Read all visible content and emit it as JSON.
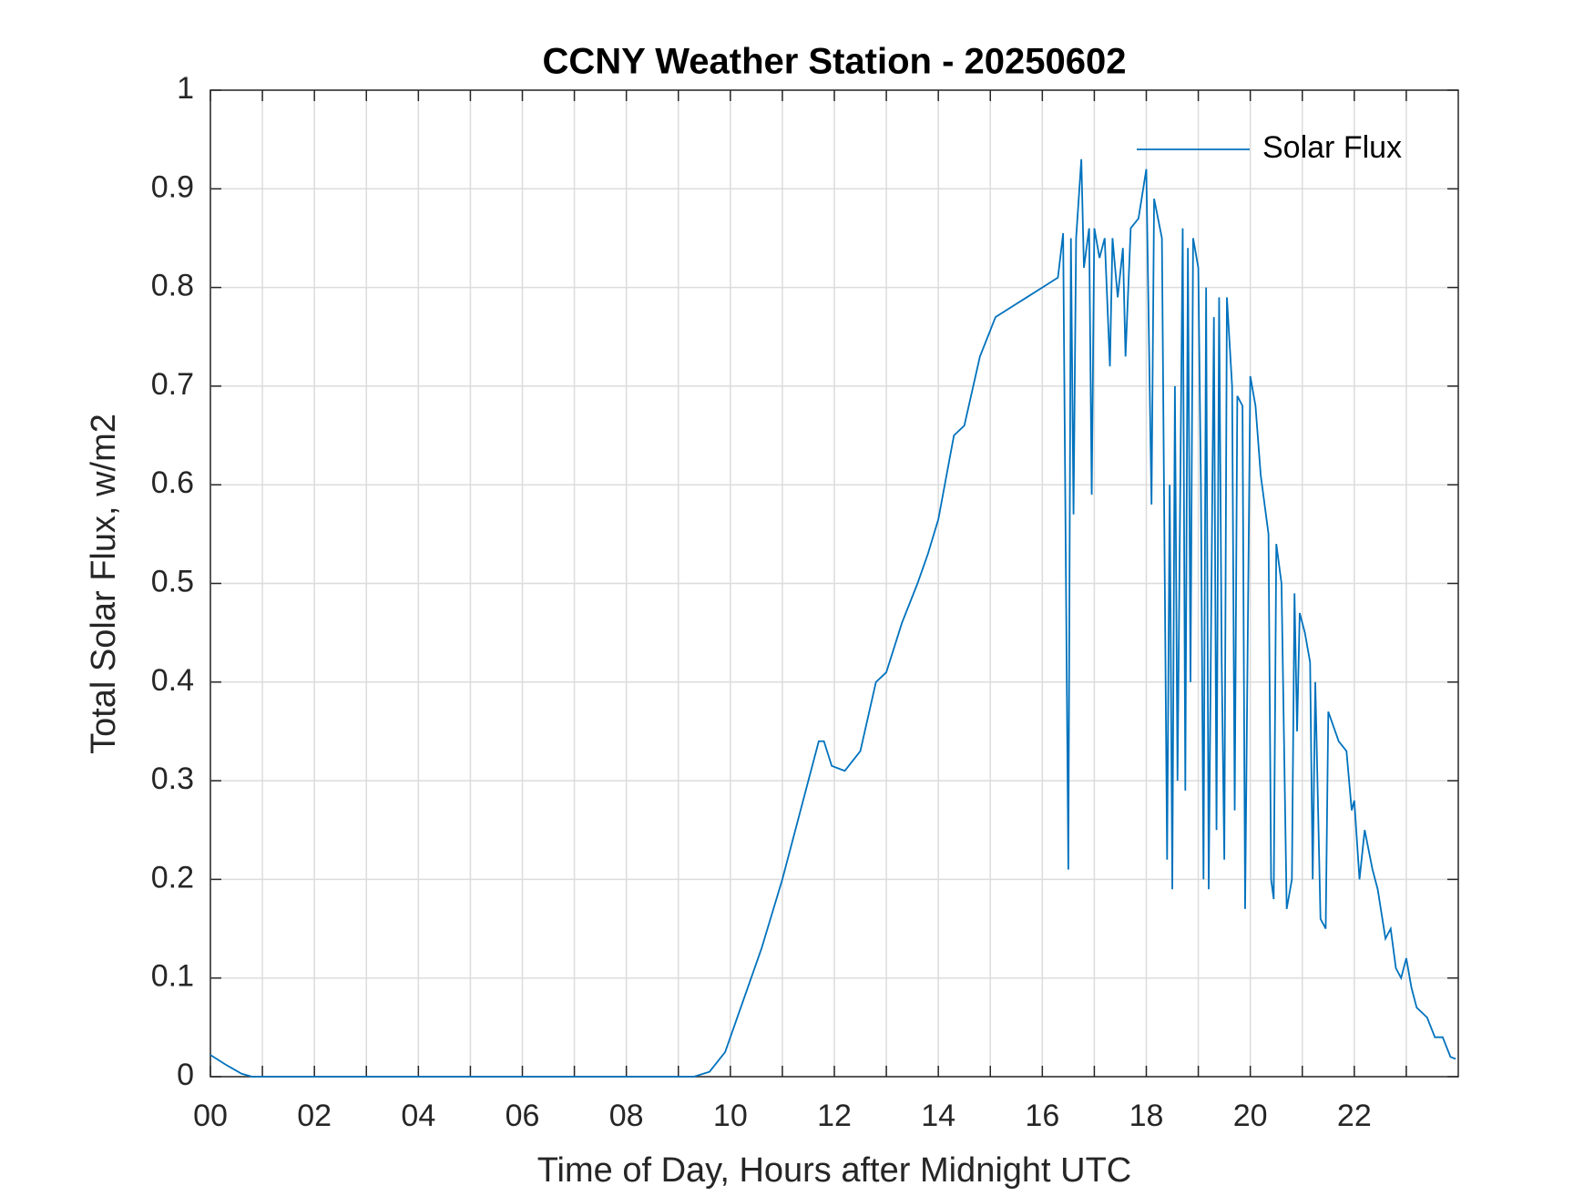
{
  "chart_data": {
    "type": "line",
    "title": "CCNY Weather Station - 20250602",
    "xlabel": "Time of Day, Hours after Midnight UTC",
    "ylabel": "Total Solar Flux, w/m2",
    "xlim": [
      0,
      24
    ],
    "ylim": [
      0,
      1
    ],
    "xticks": [
      {
        "value": 0,
        "label": "00"
      },
      {
        "value": 2,
        "label": "02"
      },
      {
        "value": 4,
        "label": "04"
      },
      {
        "value": 6,
        "label": "06"
      },
      {
        "value": 8,
        "label": "08"
      },
      {
        "value": 10,
        "label": "10"
      },
      {
        "value": 12,
        "label": "12"
      },
      {
        "value": 14,
        "label": "14"
      },
      {
        "value": 16,
        "label": "16"
      },
      {
        "value": 18,
        "label": "18"
      },
      {
        "value": 20,
        "label": "20"
      },
      {
        "value": 22,
        "label": "22"
      }
    ],
    "xminorticks": [
      1,
      3,
      5,
      7,
      9,
      11,
      13,
      15,
      17,
      19,
      21,
      23
    ],
    "yticks": [
      0,
      0.1,
      0.2,
      0.3,
      0.4,
      0.5,
      0.6,
      0.7,
      0.8,
      0.9,
      1
    ],
    "grid": true,
    "legend": "upper right",
    "series": [
      {
        "name": "Solar Flux",
        "color": "#0072bd",
        "x": [
          0,
          0.3,
          0.6,
          0.8,
          9.3,
          9.6,
          9.9,
          10.2,
          10.6,
          11.0,
          11.4,
          11.7,
          11.8,
          11.95,
          12.2,
          12.5,
          12.8,
          13.0,
          13.3,
          13.6,
          13.8,
          14.0,
          14.3,
          14.5,
          14.8,
          15.1,
          15.4,
          15.7,
          16.0,
          16.3,
          16.4,
          16.5,
          16.55,
          16.6,
          16.65,
          16.75,
          16.8,
          16.9,
          16.95,
          17.0,
          17.1,
          17.2,
          17.3,
          17.35,
          17.45,
          17.55,
          17.6,
          17.7,
          17.85,
          18.0,
          18.1,
          18.15,
          18.3,
          18.4,
          18.45,
          18.5,
          18.55,
          18.6,
          18.7,
          18.75,
          18.8,
          18.85,
          18.9,
          19.0,
          19.05,
          19.1,
          19.15,
          19.2,
          19.3,
          19.35,
          19.4,
          19.45,
          19.5,
          19.55,
          19.65,
          19.7,
          19.75,
          19.85,
          19.9,
          20.0,
          20.1,
          20.2,
          20.35,
          20.4,
          20.45,
          20.5,
          20.6,
          20.7,
          20.8,
          20.85,
          20.9,
          20.95,
          21.05,
          21.15,
          21.2,
          21.25,
          21.35,
          21.45,
          21.5,
          21.7,
          21.85,
          21.95,
          22.0,
          22.1,
          22.2,
          22.35,
          22.45,
          22.6,
          22.7,
          22.8,
          22.9,
          23.0,
          23.1,
          23.2,
          23.4,
          23.55,
          23.7,
          23.85,
          23.95
        ],
        "values": [
          0.022,
          0.012,
          0.003,
          0,
          0,
          0.005,
          0.025,
          0.07,
          0.13,
          0.2,
          0.28,
          0.34,
          0.34,
          0.315,
          0.31,
          0.33,
          0.4,
          0.41,
          0.46,
          0.5,
          0.53,
          0.565,
          0.65,
          0.66,
          0.73,
          0.77,
          0.78,
          0.79,
          0.8,
          0.81,
          0.855,
          0.21,
          0.85,
          0.57,
          0.85,
          0.93,
          0.82,
          0.86,
          0.59,
          0.86,
          0.83,
          0.85,
          0.72,
          0.85,
          0.79,
          0.84,
          0.73,
          0.86,
          0.87,
          0.92,
          0.58,
          0.89,
          0.85,
          0.22,
          0.6,
          0.19,
          0.7,
          0.3,
          0.86,
          0.29,
          0.84,
          0.4,
          0.85,
          0.82,
          0.6,
          0.2,
          0.8,
          0.19,
          0.77,
          0.25,
          0.79,
          0.42,
          0.22,
          0.79,
          0.7,
          0.27,
          0.69,
          0.68,
          0.17,
          0.71,
          0.68,
          0.61,
          0.55,
          0.2,
          0.18,
          0.54,
          0.5,
          0.17,
          0.2,
          0.49,
          0.35,
          0.47,
          0.45,
          0.42,
          0.2,
          0.4,
          0.16,
          0.15,
          0.37,
          0.34,
          0.33,
          0.27,
          0.28,
          0.2,
          0.25,
          0.21,
          0.19,
          0.14,
          0.15,
          0.11,
          0.1,
          0.12,
          0.09,
          0.07,
          0.06,
          0.04,
          0.04,
          0.02,
          0.018
        ]
      }
    ]
  }
}
